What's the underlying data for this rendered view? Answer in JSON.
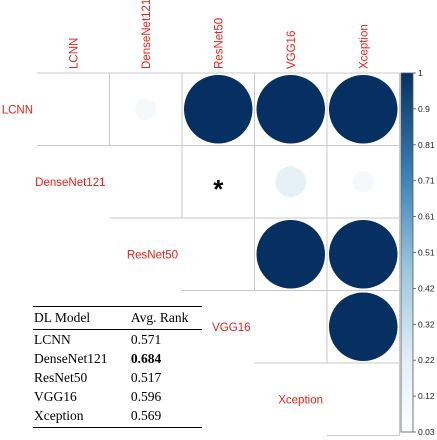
{
  "chart_data": {
    "type": "heatmap",
    "variables": [
      "LCNN",
      "DenseNet121",
      "ResNet50",
      "VGG16",
      "Xception"
    ],
    "cells": [
      {
        "row": "LCNN",
        "col": "DenseNet121",
        "value": 0.1
      },
      {
        "row": "LCNN",
        "col": "ResNet50",
        "value": 1.0
      },
      {
        "row": "LCNN",
        "col": "VGG16",
        "value": 1.0
      },
      {
        "row": "LCNN",
        "col": "Xception",
        "value": 1.0
      },
      {
        "row": "DenseNet121",
        "col": "ResNet50",
        "value": null,
        "marker": "*"
      },
      {
        "row": "DenseNet121",
        "col": "VGG16",
        "value": 0.2
      },
      {
        "row": "DenseNet121",
        "col": "Xception",
        "value": 0.1
      },
      {
        "row": "ResNet50",
        "col": "VGG16",
        "value": 1.0
      },
      {
        "row": "ResNet50",
        "col": "Xception",
        "value": 1.0
      },
      {
        "row": "VGG16",
        "col": "Xception",
        "value": 1.0
      }
    ],
    "colorbar": {
      "ticks": [
        "1",
        "0.9",
        "0.81",
        "0.71",
        "0.61",
        "0.51",
        "0.42",
        "0.32",
        "0.22",
        "0.12",
        "0.03"
      ],
      "range": [
        0.03,
        1
      ],
      "low_color": "#ffffff",
      "high_color": "#053061"
    }
  },
  "table": {
    "headers": [
      "DL Model",
      "Avg. Rank"
    ],
    "rows": [
      {
        "model": "LCNN",
        "rank": "0.571",
        "bold": false
      },
      {
        "model": "DenseNet121",
        "rank": "0.684",
        "bold": true
      },
      {
        "model": "ResNet50",
        "rank": "0.517",
        "bold": false
      },
      {
        "model": "VGG16",
        "rank": "0.596",
        "bold": false
      },
      {
        "model": "Xception",
        "rank": "0.569",
        "bold": false
      }
    ]
  },
  "colors": {
    "label": "#e8231b",
    "grid": "#c8c8c8"
  }
}
